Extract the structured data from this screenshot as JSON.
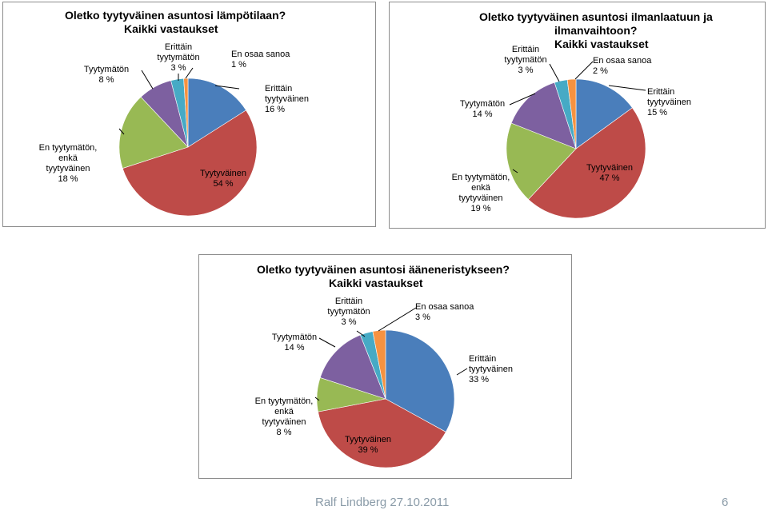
{
  "chart_data": [
    {
      "type": "pie",
      "title": [
        "Oletko tyytyväinen asuntosi lämpötilaan?",
        "Kaikki vastaukset"
      ],
      "slices": [
        {
          "label": [
            "Erittäin",
            "tyytyväinen"
          ],
          "value": 16,
          "value_label": "16 %",
          "color": "#4a7ebb"
        },
        {
          "label": [
            "Tyytyväinen"
          ],
          "value": 54,
          "value_label": "54 %",
          "color": "#be4b48"
        },
        {
          "label": [
            "En tyytymätön,",
            "enkä",
            "tyytyväinen"
          ],
          "value": 18,
          "value_label": "18 %",
          "color": "#98b954"
        },
        {
          "label": [
            "Tyytymätön"
          ],
          "value": 8,
          "value_label": "8 %",
          "color": "#7d60a0"
        },
        {
          "label": [
            "Erittäin",
            "tyytymätön"
          ],
          "value": 3,
          "value_label": "3 %",
          "color": "#46aac5"
        },
        {
          "label": [
            "En osaa sanoa"
          ],
          "value": 1,
          "value_label": "1 %",
          "color": "#f69240"
        }
      ]
    },
    {
      "type": "pie",
      "title": [
        "Oletko tyytyväinen asuntosi ilmanlaatuun ja",
        "ilmanvaihtoon?",
        "Kaikki vastaukset"
      ],
      "slices": [
        {
          "label": [
            "Erittäin",
            "tyytyväinen"
          ],
          "value": 15,
          "value_label": "15 %",
          "color": "#4a7ebb"
        },
        {
          "label": [
            "Tyytyväinen"
          ],
          "value": 47,
          "value_label": "47 %",
          "color": "#be4b48"
        },
        {
          "label": [
            "En tyytymätön,",
            "enkä",
            "tyytyväinen"
          ],
          "value": 19,
          "value_label": "19 %",
          "color": "#98b954"
        },
        {
          "label": [
            "Tyytymätön"
          ],
          "value": 14,
          "value_label": "14 %",
          "color": "#7d60a0"
        },
        {
          "label": [
            "Erittäin",
            "tyytymätön"
          ],
          "value": 3,
          "value_label": "3 %",
          "color": "#46aac5"
        },
        {
          "label": [
            "En osaa sanoa"
          ],
          "value": 2,
          "value_label": "2 %",
          "color": "#f69240"
        }
      ]
    },
    {
      "type": "pie",
      "title": [
        "Oletko tyytyväinen asuntosi ääneneristykseen?",
        "Kaikki vastaukset"
      ],
      "slices": [
        {
          "label": [
            "Erittäin",
            "tyytyväinen"
          ],
          "value": 33,
          "value_label": "33 %",
          "color": "#4a7ebb"
        },
        {
          "label": [
            "Tyytyväinen"
          ],
          "value": 39,
          "value_label": "39 %",
          "color": "#be4b48"
        },
        {
          "label": [
            "En tyytymätön,",
            "enkä",
            "tyytyväinen"
          ],
          "value": 8,
          "value_label": "8 %",
          "color": "#98b954"
        },
        {
          "label": [
            "Tyytymätön"
          ],
          "value": 14,
          "value_label": "14 %",
          "color": "#7d60a0"
        },
        {
          "label": [
            "Erittäin",
            "tyytymätön"
          ],
          "value": 3,
          "value_label": "3 %",
          "color": "#46aac5"
        },
        {
          "label": [
            "En osaa sanoa"
          ],
          "value": 3,
          "value_label": "3 %",
          "color": "#f69240"
        }
      ]
    }
  ],
  "footer": {
    "author_date": "Ralf Lindberg   27.10.2011",
    "page_number": "6"
  }
}
